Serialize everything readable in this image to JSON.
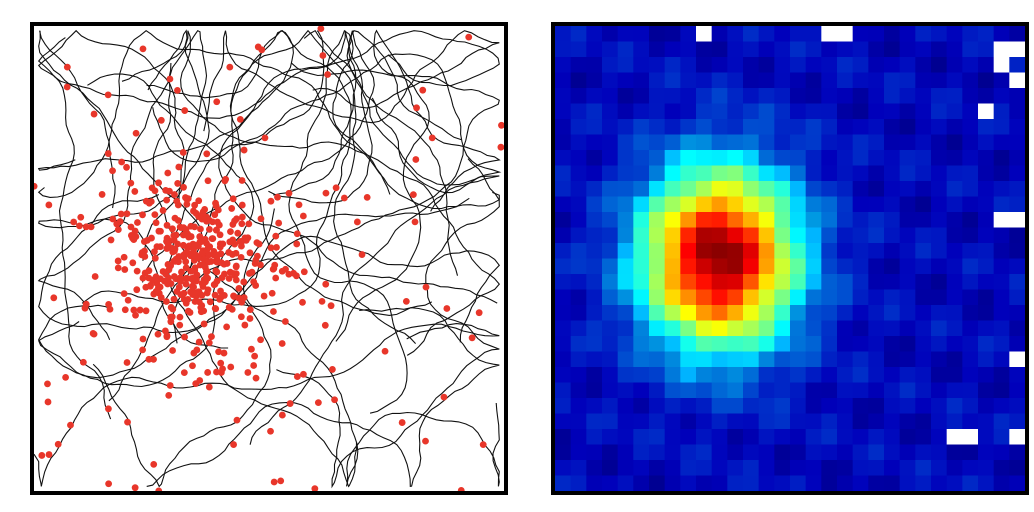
{
  "chart_data": [
    {
      "type": "scatter",
      "description_role": "trajectory-with-spikes",
      "arena_range": {
        "x": [
          0,
          100
        ],
        "y": [
          0,
          100
        ]
      },
      "trajectory_color": "#111111",
      "spike_color": "#e8362a",
      "spike_cluster_center": [
        34,
        51
      ],
      "spike_cluster_spread": 11,
      "axes_shown": false,
      "grid": false
    },
    {
      "type": "heatmap",
      "description_role": "firing-rate-map",
      "bins": [
        30,
        30
      ],
      "field_center_bin": [
        10,
        14.5
      ],
      "field_sigma_bins": [
        3.4,
        4.0
      ],
      "peak_value": 1.0,
      "background_value": 0.13,
      "colormap": "jet",
      "empty_bins_color": "#ffffff",
      "empty_bins": [
        [
          9,
          0
        ],
        [
          17,
          0
        ],
        [
          18,
          0
        ],
        [
          28,
          1
        ],
        [
          29,
          1
        ],
        [
          28,
          2
        ],
        [
          29,
          3
        ],
        [
          27,
          5
        ],
        [
          28,
          12
        ],
        [
          29,
          12
        ],
        [
          29,
          21
        ],
        [
          25,
          26
        ],
        [
          26,
          26
        ],
        [
          29,
          26
        ]
      ],
      "axes_shown": false,
      "grid": false
    }
  ]
}
